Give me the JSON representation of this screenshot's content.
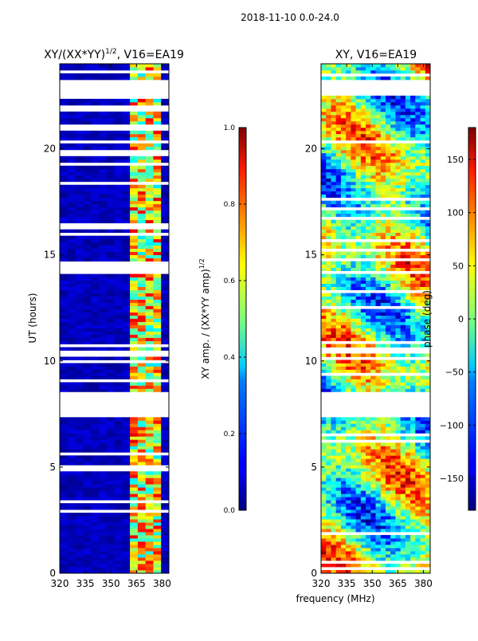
{
  "figure_title": "2018-11-10 0.0-24.0",
  "shared_xlabel": "frequency (MHz)",
  "chart_data": [
    {
      "type": "heatmap",
      "title_prefix": "XY/(XX*YY)",
      "title_exponent": "1/2",
      "title_suffix": ", V16=EA19",
      "ylabel": "UT (hours)",
      "xlim": [
        320,
        384
      ],
      "ylim": [
        0,
        24
      ],
      "xticks": [
        320,
        335,
        350,
        365,
        380
      ],
      "yticks": [
        0,
        5,
        10,
        15,
        20
      ],
      "colorbar": {
        "label_prefix": "XY amp. / (XX*YY amp)",
        "label_exponent": "1/2",
        "range": [
          0.0,
          1.0
        ],
        "ticks": [
          "0.0",
          "0.2",
          "0.4",
          "0.6",
          "0.8",
          "1.0"
        ],
        "colormap": "jet"
      },
      "flagged_hour_ranges": [
        [
          7.4,
          8.5
        ],
        [
          22.5,
          23.2
        ]
      ]
    },
    {
      "type": "heatmap",
      "title": "XY, V16=EA19",
      "xlim": [
        320,
        384
      ],
      "ylim": [
        0,
        24
      ],
      "xticks": [
        320,
        335,
        350,
        365,
        380
      ],
      "yticks": [
        0,
        5,
        10,
        15,
        20
      ],
      "colorbar": {
        "label": "phase (deg)",
        "range": [
          -180,
          180
        ],
        "ticks": [
          "−150",
          "−100",
          "−50",
          "0",
          "50",
          "100",
          "150"
        ],
        "colormap": "jet"
      },
      "flagged_hour_ranges": [
        [
          7.4,
          8.5
        ],
        [
          22.5,
          23.2
        ]
      ]
    }
  ]
}
